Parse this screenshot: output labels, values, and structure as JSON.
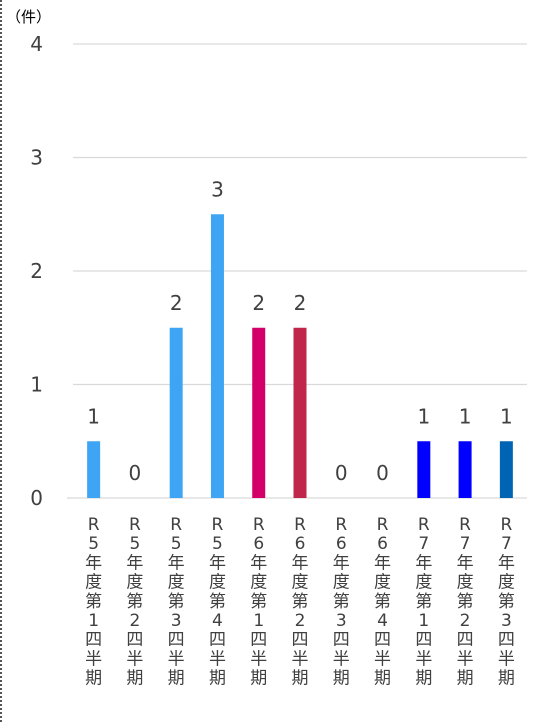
{
  "chart_data": {
    "type": "bar",
    "unit_label": "（件）",
    "ylim": [
      0,
      4
    ],
    "yticks": [
      "0",
      "1",
      "2",
      "3",
      "4"
    ],
    "tick_values": [
      0,
      1,
      2,
      3,
      4
    ],
    "grid": true,
    "categories": [
      "R5年度第1四半期",
      "R5年度第2四半期",
      "R5年度第3四半期",
      "R5年度第4四半期",
      "R6年度第1四半期",
      "R6年度第2四半期",
      "R6年度第3四半期",
      "R6年度第4四半期",
      "R7年度第1四半期",
      "R7年度第2四半期",
      "R7年度第3四半期"
    ],
    "values": [
      0.5,
      0,
      1.5,
      2.5,
      1.5,
      1.5,
      0,
      0,
      0.5,
      0.5,
      0.5
    ],
    "data_labels": [
      "1",
      "0",
      "2",
      "3",
      "2",
      "2",
      "0",
      "0",
      "1",
      "1",
      "1"
    ],
    "colors": [
      "#3DA5F4",
      "#3DA5F4",
      "#3DA5F4",
      "#3DA5F4",
      "#D4006A",
      "#C0254A",
      "#3DA5F4",
      "#3DA5F4",
      "#0000FF",
      "#0000FF",
      "#0064B4"
    ],
    "gridline_color": "#D9D9D9",
    "label_color": "#404040"
  }
}
